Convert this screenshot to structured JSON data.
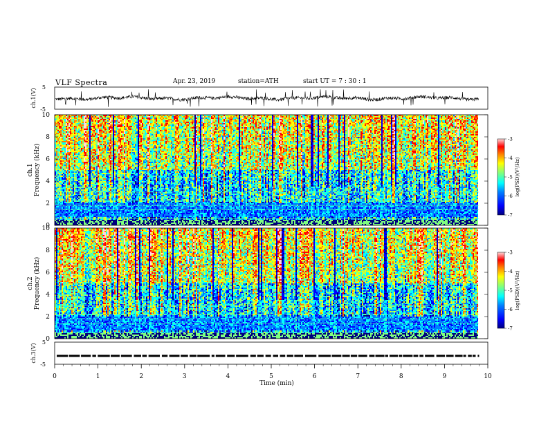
{
  "header": {
    "title": "VLF  Spectra",
    "date": "Apr. 23, 2019",
    "station": "station=ATH",
    "start": "start  UT  =    7  : 30 : 1"
  },
  "chart_data": [
    {
      "type": "line",
      "panel": "ch1-waveform",
      "ylabel": "ch.1(V)",
      "yticks": [
        "5",
        "-5"
      ],
      "ylim": [
        -5,
        5
      ],
      "trace_baseline": 0,
      "trace_amplitude_typical": 1.5,
      "trace_amplitude_spikes": 4,
      "x_data_end_min": 9.8
    },
    {
      "type": "heatmap",
      "panel": "ch1-spectrogram",
      "ylabel": "ch.1\nFrequency  (kHz)",
      "ylabel_line1": "ch.1",
      "ylabel_line2": "Frequency  (kHz)",
      "yticks": [
        "0",
        "2",
        "4",
        "6",
        "8",
        "10"
      ],
      "ylim": [
        0,
        10
      ],
      "x_data_end_min": 9.8,
      "colorbar": {
        "label": "log(PSD)(V²/Hz)",
        "ticks": [
          "-3",
          "-4",
          "-5",
          "-6",
          "-7"
        ],
        "range": [
          -7,
          -3
        ],
        "colormap": "jet"
      }
    },
    {
      "type": "heatmap",
      "panel": "ch2-spectrogram",
      "ylabel_line1": "ch.2",
      "ylabel_line2": "Frequency  (kHz)",
      "yticks": [
        "0",
        "2",
        "4",
        "6",
        "8",
        "10"
      ],
      "ylim": [
        0,
        10
      ],
      "x_data_end_min": 9.8,
      "colorbar": {
        "label": "log(PSD)(V²/Hz)",
        "ticks": [
          "-3",
          "-4",
          "-5",
          "-6",
          "-7"
        ],
        "range": [
          -7,
          -3
        ],
        "colormap": "jet"
      }
    },
    {
      "type": "line",
      "panel": "ch3-waveform",
      "ylabel": "ch.3(V)",
      "yticks": [
        "5",
        "-5"
      ],
      "ylim": [
        -5,
        5
      ],
      "trace_level": -1.2,
      "x_data_end_min": 9.8
    }
  ],
  "xaxis": {
    "label": "Time  (min)",
    "ticks": [
      "0",
      "1",
      "2",
      "3",
      "4",
      "5",
      "6",
      "7",
      "8",
      "9",
      "10"
    ],
    "xlim": [
      0,
      10
    ]
  },
  "colors": {
    "jet": [
      "#00007f",
      "#0000ff",
      "#007fff",
      "#00ffff",
      "#7fff7f",
      "#ffff00",
      "#ff7f00",
      "#ff0000",
      "#ffd9d9"
    ]
  }
}
